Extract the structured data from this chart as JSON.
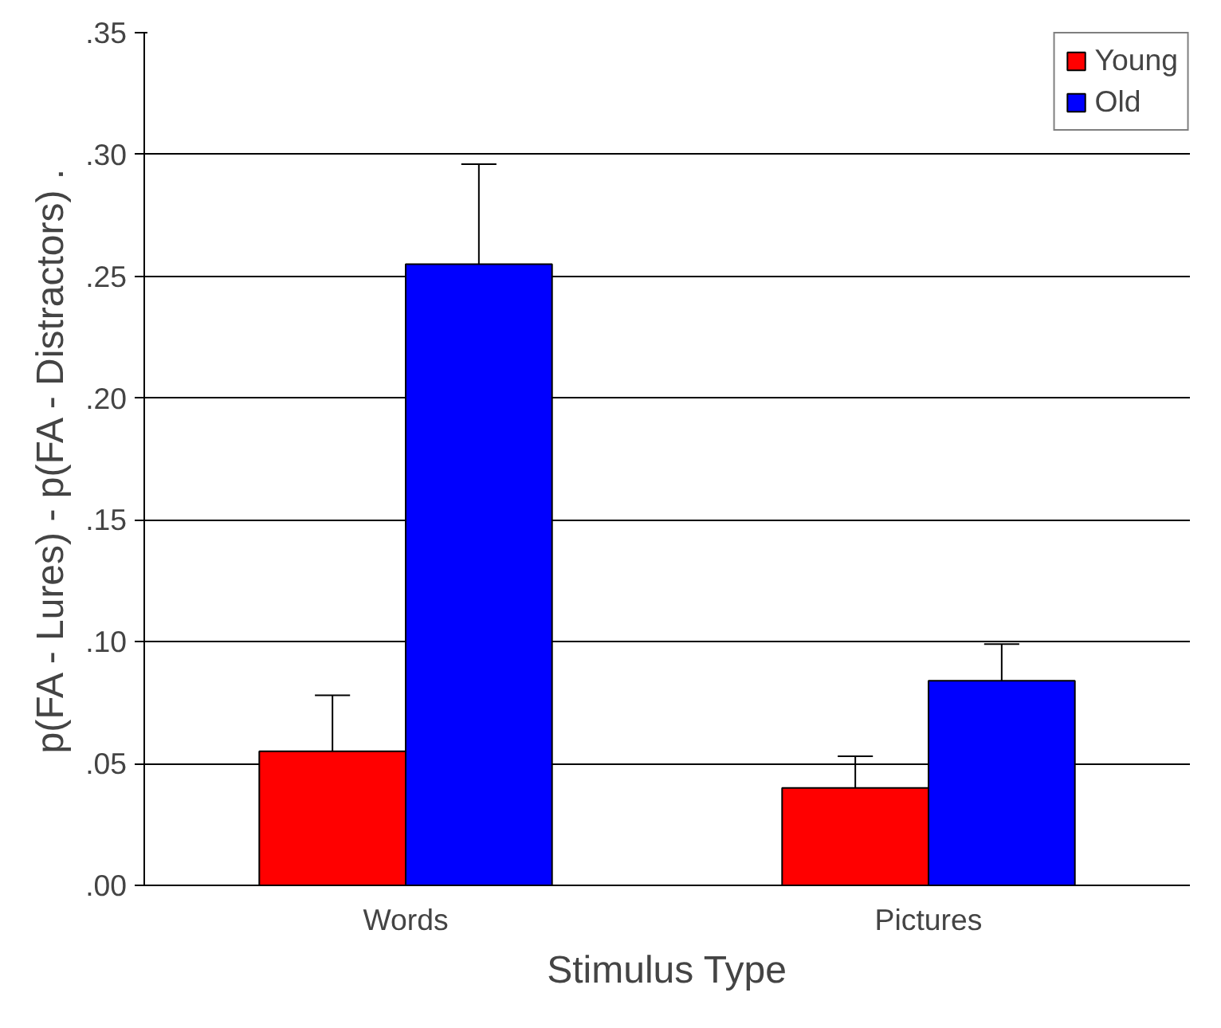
{
  "chart_data": {
    "type": "bar",
    "xlabel": "Stimulus Type",
    "ylabel": "p(FA - Lures) - p(FA - Distractors) .",
    "categories": [
      "Words",
      "Pictures"
    ],
    "series": [
      {
        "name": "Young",
        "color": "#ff0000",
        "values": [
          0.055,
          0.04
        ],
        "errors": [
          [
            0.055,
            0.078
          ],
          [
            0.04,
            0.053
          ]
        ]
      },
      {
        "name": "Old",
        "color": "#0000ff",
        "values": [
          0.255,
          0.084
        ],
        "errors": [
          [
            0.255,
            0.296
          ],
          [
            0.084,
            0.099
          ]
        ]
      }
    ],
    "ylim": [
      0,
      0.35
    ],
    "yticks": [
      {
        "value": 0,
        "label": ".00"
      },
      {
        "value": 0.05,
        "label": ".05"
      },
      {
        "value": 0.1,
        "label": ".10"
      },
      {
        "value": 0.15,
        "label": ".15"
      },
      {
        "value": 0.2,
        "label": ".20"
      },
      {
        "value": 0.25,
        "label": ".25"
      },
      {
        "value": 0.3,
        "label": ".30"
      },
      {
        "value": 0.35,
        "label": ".35"
      }
    ],
    "grid": "y",
    "legend": "top right"
  }
}
